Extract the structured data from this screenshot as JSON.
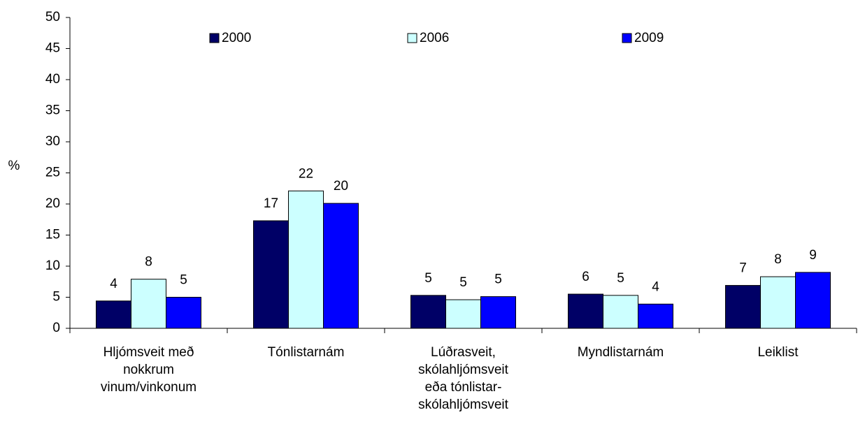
{
  "chart_data": {
    "type": "bar",
    "y_label": "%",
    "categories": [
      "Hljómsveit með nokkrum vinum/vinkonum",
      "Tónlistarnám",
      "Lúðrasveit, skólahljómsveit eða tónlistar-skólahljómsveit",
      "Myndlistarnám",
      "Leiklist"
    ],
    "series": [
      {
        "name": "2000",
        "color": "#000066",
        "values": [
          4.4,
          17.3,
          5.3,
          5.5,
          6.9
        ],
        "value_labels": [
          "4",
          "17",
          "5",
          "6",
          "7"
        ]
      },
      {
        "name": "2006",
        "color": "#ccffff",
        "values": [
          7.9,
          22.1,
          4.6,
          5.3,
          8.3
        ],
        "value_labels": [
          "8",
          "22",
          "5",
          "5",
          "8"
        ]
      },
      {
        "name": "2009",
        "color": "#0000ff",
        "values": [
          5.0,
          20.1,
          5.1,
          3.9,
          9.0
        ],
        "value_labels": [
          "5",
          "20",
          "5",
          "4",
          "9"
        ]
      }
    ],
    "ylim": [
      0,
      50
    ],
    "yticks": [
      0,
      5,
      10,
      15,
      20,
      25,
      30,
      35,
      40,
      45,
      50
    ],
    "grid": false,
    "legend": "top"
  }
}
